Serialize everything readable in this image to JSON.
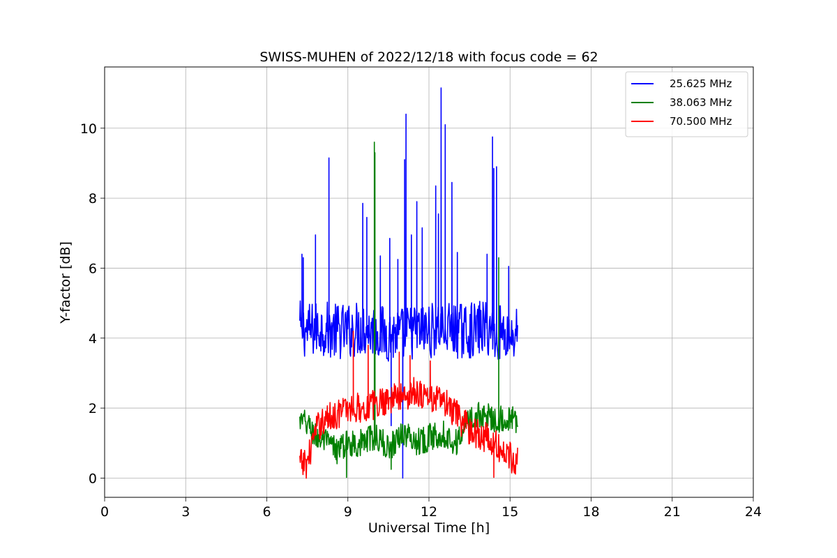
{
  "chart_data": {
    "type": "line",
    "title": "SWISS-MUHEN of 2022/12/18 with focus code = 62",
    "xlabel": "Universal Time [h]",
    "ylabel": "Y-factor [dB]",
    "xlim": [
      0,
      24
    ],
    "ylim": [
      -0.55,
      11.75
    ],
    "xticks": [
      0,
      3,
      6,
      9,
      12,
      15,
      18,
      21,
      24
    ],
    "yticks": [
      0,
      2,
      4,
      6,
      8,
      10
    ],
    "grid": true,
    "legend_position": "top-right",
    "x_sampling": {
      "start": 7.22,
      "end": 15.28,
      "step": 0.02
    },
    "series": [
      {
        "name": "25.625 MHz",
        "color": "#0000ff",
        "anchors": [
          [
            7.22,
            4.3
          ],
          [
            7.5,
            4.2
          ],
          [
            8.0,
            4.3
          ],
          [
            8.5,
            4.2
          ],
          [
            9.0,
            4.2
          ],
          [
            9.5,
            4.3
          ],
          [
            10.0,
            4.2
          ],
          [
            10.5,
            4.1
          ],
          [
            11.0,
            4.1
          ],
          [
            11.5,
            4.2
          ],
          [
            12.0,
            4.2
          ],
          [
            12.5,
            4.3
          ],
          [
            13.0,
            4.2
          ],
          [
            13.5,
            4.2
          ],
          [
            14.0,
            4.3
          ],
          [
            14.5,
            4.2
          ],
          [
            15.0,
            4.1
          ],
          [
            15.28,
            4.1
          ]
        ],
        "noise": 1.6,
        "spikes": [
          [
            7.3,
            6.4
          ],
          [
            7.35,
            6.3
          ],
          [
            7.8,
            6.95
          ],
          [
            8.3,
            9.15
          ],
          [
            9.55,
            7.85
          ],
          [
            9.7,
            7.45
          ],
          [
            10.2,
            6.35
          ],
          [
            10.55,
            6.85
          ],
          [
            10.85,
            6.25
          ],
          [
            11.1,
            9.1
          ],
          [
            11.15,
            10.4
          ],
          [
            11.35,
            6.95
          ],
          [
            11.55,
            7.9
          ],
          [
            11.75,
            7.15
          ],
          [
            12.25,
            8.35
          ],
          [
            12.35,
            7.55
          ],
          [
            12.45,
            11.15
          ],
          [
            12.6,
            10.1
          ],
          [
            12.85,
            8.45
          ],
          [
            13.05,
            6.45
          ],
          [
            14.15,
            6.4
          ],
          [
            14.35,
            9.75
          ],
          [
            14.4,
            8.85
          ],
          [
            14.5,
            8.9
          ],
          [
            14.95,
            6.05
          ],
          [
            11.03,
            0.0
          ],
          [
            10.6,
            1.5
          ]
        ]
      },
      {
        "name": "38.063 MHz",
        "color": "#008000",
        "anchors": [
          [
            7.22,
            1.6
          ],
          [
            7.5,
            1.55
          ],
          [
            7.8,
            1.2
          ],
          [
            8.2,
            1.0
          ],
          [
            8.6,
            0.8
          ],
          [
            9.0,
            1.0
          ],
          [
            9.5,
            1.0
          ],
          [
            10.0,
            1.2
          ],
          [
            10.5,
            0.85
          ],
          [
            11.0,
            1.3
          ],
          [
            11.5,
            1.05
          ],
          [
            12.0,
            1.15
          ],
          [
            12.5,
            1.3
          ],
          [
            13.0,
            1.0
          ],
          [
            13.5,
            1.7
          ],
          [
            14.0,
            1.8
          ],
          [
            14.5,
            1.7
          ],
          [
            15.0,
            1.65
          ],
          [
            15.28,
            1.65
          ]
        ],
        "noise": 0.8,
        "spikes": [
          [
            9.98,
            9.6
          ],
          [
            10.0,
            9.3
          ],
          [
            14.58,
            6.3
          ],
          [
            8.95,
            0.02
          ],
          [
            10.6,
            0.25
          ]
        ]
      },
      {
        "name": "70.500 MHz",
        "color": "#ff0000",
        "anchors": [
          [
            7.22,
            0.4
          ],
          [
            7.5,
            0.45
          ],
          [
            7.75,
            1.2
          ],
          [
            8.0,
            1.6
          ],
          [
            8.5,
            1.8
          ],
          [
            9.0,
            2.0
          ],
          [
            9.5,
            2.0
          ],
          [
            10.0,
            2.1
          ],
          [
            10.5,
            2.3
          ],
          [
            11.0,
            2.3
          ],
          [
            11.5,
            2.5
          ],
          [
            12.0,
            2.3
          ],
          [
            12.5,
            2.2
          ],
          [
            13.0,
            1.8
          ],
          [
            13.5,
            1.4
          ],
          [
            14.0,
            1.2
          ],
          [
            14.5,
            0.9
          ],
          [
            15.0,
            0.6
          ],
          [
            15.28,
            0.55
          ]
        ],
        "noise": 0.9,
        "spikes": [
          [
            9.2,
            4.2
          ],
          [
            9.75,
            3.8
          ],
          [
            10.9,
            3.6
          ],
          [
            11.3,
            3.5
          ],
          [
            12.05,
            3.35
          ],
          [
            14.4,
            0.02
          ]
        ]
      }
    ]
  }
}
